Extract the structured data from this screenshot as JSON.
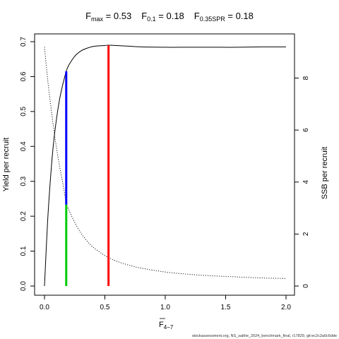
{
  "chart_data": {
    "type": "line",
    "title": {
      "fmax_label": "F",
      "fmax_sub": "max",
      "fmax_value": " = 0.53",
      "f01_label": "F",
      "f01_sub": "0.1",
      "f01_value": " = 0.18",
      "fspr_label": "F",
      "fspr_sub": "0.35SPR",
      "fspr_value": " = 0.18"
    },
    "xlabel": "F",
    "xlabel_sub": "4−7",
    "ylabel_left": "Yield per recruit",
    "ylabel_right": "SSB per recruit",
    "xlim": [
      0,
      2.0
    ],
    "ylim_left": [
      0,
      0.7
    ],
    "ylim_right": [
      0,
      9.4
    ],
    "x_ticks": [
      "0.0",
      "0.5",
      "1.0",
      "1.5",
      "2.0"
    ],
    "x_tick_values": [
      0,
      0.5,
      1.0,
      1.5,
      2.0
    ],
    "y_ticks_left": [
      "0.0",
      "0.1",
      "0.2",
      "0.3",
      "0.4",
      "0.5",
      "0.6",
      "0.7"
    ],
    "y_tick_values_left": [
      0,
      0.1,
      0.2,
      0.3,
      0.4,
      0.5,
      0.6,
      0.7
    ],
    "y_ticks_right": [
      "0",
      "2",
      "4",
      "6",
      "8"
    ],
    "y_tick_values_right": [
      0,
      2,
      4,
      6,
      8
    ],
    "series": [
      {
        "axis": "left",
        "style": "solid",
        "x": [
          0,
          0.025,
          0.05,
          0.075,
          0.1,
          0.125,
          0.15,
          0.18,
          0.2,
          0.25,
          0.3,
          0.35,
          0.4,
          0.45,
          0.5,
          0.53,
          0.6,
          0.7,
          0.8,
          1.0,
          1.2,
          1.4,
          1.6,
          1.8,
          2.0
        ],
        "values": [
          0,
          0.18,
          0.31,
          0.41,
          0.48,
          0.535,
          0.575,
          0.615,
          0.632,
          0.658,
          0.673,
          0.681,
          0.686,
          0.688,
          0.689,
          0.69,
          0.689,
          0.687,
          0.685,
          0.684,
          0.684,
          0.684,
          0.684,
          0.685,
          0.685
        ]
      },
      {
        "axis": "right",
        "style": "dotted",
        "x": [
          0,
          0.025,
          0.05,
          0.075,
          0.1,
          0.125,
          0.15,
          0.18,
          0.2,
          0.25,
          0.3,
          0.35,
          0.4,
          0.5,
          0.53,
          0.6,
          0.7,
          0.8,
          1.0,
          1.2,
          1.4,
          1.6,
          1.8,
          2.0
        ],
        "values": [
          9.2,
          8.0,
          7.0,
          6.1,
          5.3,
          4.6,
          4.0,
          3.2,
          2.95,
          2.45,
          2.05,
          1.75,
          1.5,
          1.17,
          1.1,
          0.95,
          0.8,
          0.69,
          0.54,
          0.45,
          0.39,
          0.35,
          0.31,
          0.29
        ]
      }
    ],
    "reference_lines": [
      {
        "name": "F0.1",
        "x": 0.18,
        "y_from": 0.233,
        "y_to": 0.615,
        "color": "#0000ff"
      },
      {
        "name": "F0.35SPR",
        "x": 0.18,
        "y_from": 0,
        "y_to": 0.233,
        "color": "#00cc00"
      },
      {
        "name": "Fmax",
        "x": 0.53,
        "y_from": 0,
        "y_to": 0.69,
        "color": "#ff0000"
      }
    ],
    "footer": "stockassessment.org, NS_saithe_2024_benchmark_final, r17829, git:ec2c2a0c6dde"
  }
}
